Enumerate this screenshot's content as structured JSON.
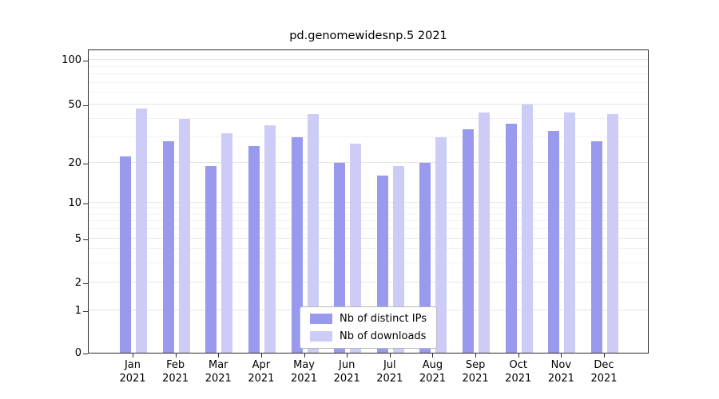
{
  "chart_data": {
    "type": "bar",
    "title": "pd.genomewidesnp.5 2021",
    "categories": [
      "Jan",
      "Feb",
      "Mar",
      "Apr",
      "May",
      "Jun",
      "Jul",
      "Aug",
      "Sep",
      "Oct",
      "Nov",
      "Dec"
    ],
    "category_year": "2021",
    "series": [
      {
        "name": "Nb of distinct IPs",
        "color": "#9999ee",
        "values": [
          22,
          28,
          19,
          26,
          30,
          20,
          16,
          20,
          34,
          37,
          33,
          28
        ]
      },
      {
        "name": "Nb of downloads",
        "color": "#ccccf6",
        "values": [
          47,
          40,
          32,
          36,
          43,
          27,
          19,
          30,
          44,
          50,
          44,
          43
        ]
      }
    ],
    "yscale": "symlog",
    "yticks": [
      0,
      1,
      2,
      5,
      10,
      20,
      50,
      100
    ],
    "ylim": [
      0,
      130
    ],
    "grid": true,
    "legend_position": "lower center"
  }
}
